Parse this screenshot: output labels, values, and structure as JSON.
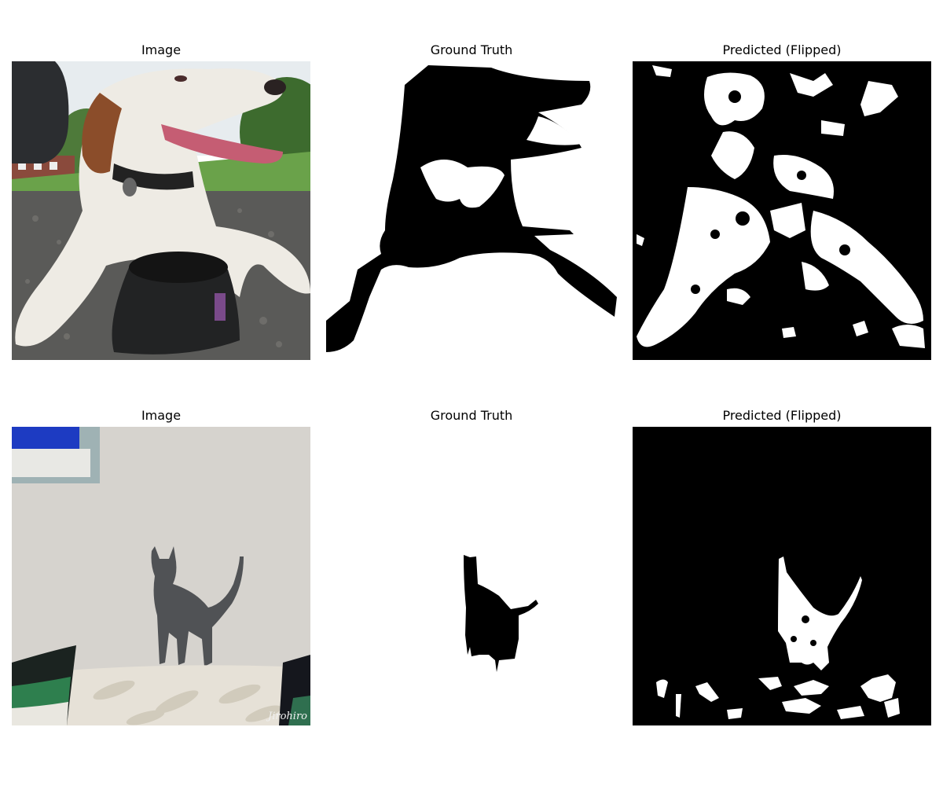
{
  "figure": {
    "rows": [
      {
        "panels": [
          {
            "title": "Image",
            "kind": "photo",
            "subject": "dog"
          },
          {
            "title": "Ground Truth",
            "kind": "ground-truth-mask",
            "subject": "dog"
          },
          {
            "title": "Predicted (Flipped)",
            "kind": "predicted-mask",
            "subject": "dog"
          }
        ]
      },
      {
        "panels": [
          {
            "title": "Image",
            "kind": "photo",
            "subject": "cat",
            "watermark": "Jirohiro"
          },
          {
            "title": "Ground Truth",
            "kind": "ground-truth-mask",
            "subject": "cat"
          },
          {
            "title": "Predicted (Flipped)",
            "kind": "predicted-mask",
            "subject": "cat"
          }
        ]
      }
    ]
  },
  "colors": {
    "background": "#ffffff",
    "mask_foreground": "#000000",
    "mask_background": "#ffffff"
  }
}
